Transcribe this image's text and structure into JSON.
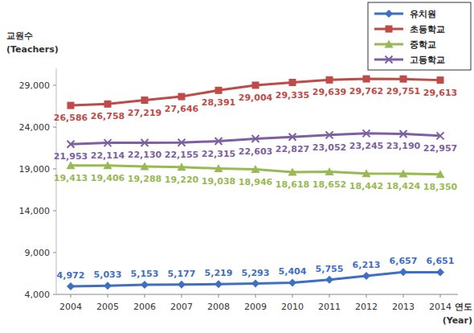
{
  "chart_data": {
    "type": "line",
    "xlabel": "연도\n(Year)",
    "ylabel": "교원수\n(Teachers)",
    "categories": [
      "2004",
      "2005",
      "2006",
      "2007",
      "2008",
      "2009",
      "2010",
      "2011",
      "2012",
      "2013",
      "2014"
    ],
    "series": [
      {
        "name": "유치원",
        "color": "#3f6fc1",
        "marker": "diamond",
        "values": [
          4972,
          5033,
          5153,
          5177,
          5219,
          5293,
          5404,
          5755,
          6213,
          6657,
          6651
        ],
        "value_labels": [
          "4,972",
          "5,033",
          "5,153",
          "5,177",
          "5,219",
          "5,293",
          "5,404",
          "5,755",
          "6,213",
          "6,657",
          "6,651"
        ]
      },
      {
        "name": "초등학교",
        "color": "#be4b48",
        "marker": "square",
        "values": [
          26586,
          26758,
          27219,
          27646,
          28391,
          29004,
          29335,
          29639,
          29762,
          29751,
          29613
        ],
        "value_labels": [
          "26,586",
          "26,758",
          "27,219",
          "27,646",
          "28,391",
          "29,004",
          "29,335",
          "29,639",
          "29,762",
          "29,751",
          "29,613"
        ]
      },
      {
        "name": "중학교",
        "color": "#98b954",
        "marker": "triangle",
        "values": [
          19413,
          19406,
          19288,
          19220,
          19038,
          18946,
          18618,
          18652,
          18442,
          18424,
          18350
        ],
        "value_labels": [
          "19,413",
          "19,406",
          "19,288",
          "19,220",
          "19,038",
          "18,946",
          "18,618",
          "18,652",
          "18,442",
          "18,424",
          "18,350"
        ]
      },
      {
        "name": "고등학교",
        "color": "#7d60a0",
        "marker": "x",
        "values": [
          21953,
          22114,
          22130,
          22155,
          22315,
          22603,
          22827,
          23052,
          23245,
          23190,
          22957
        ],
        "value_labels": [
          "21,953",
          "22,114",
          "22,130",
          "22,155",
          "22,315",
          "22,603",
          "22,827",
          "23,052",
          "23,245",
          "23,190",
          "22,957"
        ]
      }
    ],
    "ylim": [
      4000,
      31000
    ],
    "yticks": [
      {
        "value": 4000,
        "label": "4,000"
      },
      {
        "value": 9000,
        "label": "9,000"
      },
      {
        "value": 14000,
        "label": "14,000"
      },
      {
        "value": 19000,
        "label": "19,000"
      },
      {
        "value": 24000,
        "label": "24,000"
      },
      {
        "value": 29000,
        "label": "29,000"
      }
    ],
    "data_labels": true,
    "grid": false,
    "legend": "upper right"
  }
}
